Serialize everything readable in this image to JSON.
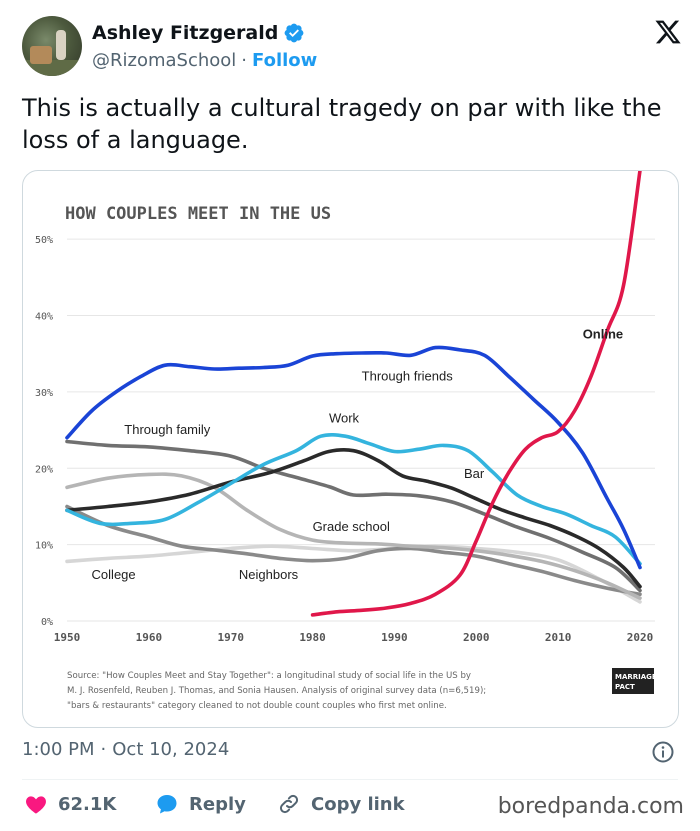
{
  "author": {
    "name": "Ashley Fitzgerald",
    "handle": "@RizomaSchool",
    "separator": "·",
    "follow_label": "Follow"
  },
  "tweet": {
    "text": "This is actually a cultural tragedy on par with like the loss of a language."
  },
  "meta": {
    "time": "1:00 PM",
    "separator": "·",
    "date": "Oct 10, 2024"
  },
  "actions": {
    "likes": "62.1K",
    "reply_label": "Reply",
    "copy_label": "Copy link"
  },
  "watermark": "boredpanda.com",
  "icons": {
    "verified": "verified-badge-icon",
    "x": "x-logo-icon",
    "info": "info-icon",
    "like": "heart-icon",
    "reply": "reply-bubble-icon",
    "copy": "link-icon"
  },
  "colors": {
    "like": "#f91880",
    "reply": "#1d9bf0",
    "verified": "#1d9bf0"
  },
  "chart_data": {
    "type": "line",
    "title": "HOW COUPLES MEET IN THE US",
    "xlim": [
      1950,
      2020
    ],
    "ylim": [
      0,
      55
    ],
    "xticks": [
      "1950",
      "1960",
      "1970",
      "1980",
      "1990",
      "2000",
      "2010",
      "2020"
    ],
    "xtick_values": [
      1950,
      1960,
      1970,
      1980,
      1990,
      2000,
      2010,
      2020
    ],
    "yticks": [
      "0%",
      "10%",
      "20%",
      "30%",
      "40%",
      "50%"
    ],
    "ytick_values": [
      0,
      10,
      20,
      30,
      40,
      50
    ],
    "grid": true,
    "source_lines": [
      "Source: \"How Couples Meet and Stay Together\": a longitudinal study of social life in the US by",
      "M. J. Rosenfeld, Reuben J. Thomas, and Sonia Hausen. Analysis of original survey data (n=6,519);",
      "\"bars & restaurants\" category cleaned to not double count couples who first met online."
    ],
    "logo_lines": [
      "MARRIAGE",
      "PACT"
    ],
    "series": [
      {
        "name": "Online",
        "color": "#e0174a",
        "x": [
          1980,
          1983,
          1986,
          1989,
          1992,
          1995,
          1998,
          2000,
          2002,
          2004,
          2006,
          2008,
          2010,
          2012,
          2014,
          2016,
          2018,
          2020
        ],
        "y": [
          0.8,
          1.2,
          1.4,
          1.7,
          2.3,
          3.5,
          6.0,
          10.5,
          15.5,
          19.5,
          22.5,
          24.0,
          24.8,
          27.5,
          32.0,
          38.0,
          44.0,
          59.0
        ]
      },
      {
        "name": "Through friends",
        "color": "#1a44d6",
        "x": [
          1950,
          1953,
          1956,
          1959,
          1962,
          1965,
          1968,
          1971,
          1974,
          1977,
          1980,
          1983,
          1986,
          1989,
          1992,
          1995,
          1998,
          2001,
          2004,
          2007,
          2010,
          2013,
          2016,
          2018,
          2020
        ],
        "y": [
          24,
          27.5,
          30,
          32,
          33.5,
          33.3,
          33,
          33.1,
          33.2,
          33.5,
          34.7,
          35,
          35.1,
          35.1,
          34.8,
          35.8,
          35.5,
          34.8,
          32,
          29,
          26,
          22,
          16,
          12,
          7
        ]
      },
      {
        "name": "Work",
        "color": "#34b4de",
        "x": [
          1950,
          1954,
          1958,
          1962,
          1966,
          1970,
          1974,
          1978,
          1981,
          1984,
          1987,
          1990,
          1993,
          1996,
          1999,
          2002,
          2005,
          2008,
          2011,
          2014,
          2017,
          2020
        ],
        "y": [
          14.5,
          12.8,
          12.8,
          13.3,
          15.5,
          18,
          20.5,
          22.3,
          24.2,
          24.2,
          23.2,
          22.2,
          22.5,
          23.0,
          22.3,
          19.5,
          16.5,
          15,
          14.0,
          12.5,
          11,
          7.5
        ]
      },
      {
        "name": "Bar",
        "color": "#2a2a2a",
        "x": [
          1950,
          1955,
          1960,
          1965,
          1970,
          1975,
          1979,
          1982,
          1985,
          1988,
          1991,
          1994,
          1997,
          2000,
          2003,
          2006,
          2009,
          2012,
          2015,
          2018,
          2020
        ],
        "y": [
          14.5,
          15,
          15.6,
          16.6,
          18.2,
          19.5,
          21,
          22.2,
          22.3,
          21,
          19,
          18.3,
          17.4,
          16,
          14.6,
          13.5,
          12.5,
          11.2,
          9.5,
          7,
          4.5
        ]
      },
      {
        "name": "Through family",
        "color": "#707070",
        "x": [
          1950,
          1955,
          1960,
          1965,
          1970,
          1974,
          1978,
          1982,
          1985,
          1989,
          1993,
          1997,
          2001,
          2005,
          2009,
          2013,
          2017,
          2020
        ],
        "y": [
          23.5,
          23,
          22.8,
          22.3,
          21.6,
          20,
          18.8,
          17.6,
          16.5,
          16.6,
          16.4,
          15.6,
          14,
          12.3,
          10.8,
          9,
          7,
          4
        ]
      },
      {
        "name": "Grade school",
        "color": "#b5b5b5",
        "x": [
          1950,
          1955,
          1960,
          1964,
          1968,
          1972,
          1976,
          1980,
          1984,
          1988,
          1992,
          1996,
          2000,
          2004,
          2008,
          2012,
          2016,
          2020
        ],
        "y": [
          17.5,
          18.7,
          19.2,
          19,
          17.5,
          14.5,
          12,
          10.6,
          10.2,
          10.1,
          9.8,
          9.6,
          9.2,
          8.6,
          7.8,
          6.6,
          5,
          3
        ]
      },
      {
        "name": "Neighbors",
        "color": "#8a8a8a",
        "x": [
          1950,
          1955,
          1960,
          1964,
          1968,
          1972,
          1976,
          1980,
          1984,
          1988,
          1992,
          1996,
          2000,
          2004,
          2008,
          2012,
          2016,
          2020
        ],
        "y": [
          15,
          12.5,
          11,
          9.8,
          9.3,
          8.8,
          8.2,
          7.9,
          8.2,
          9.2,
          9.5,
          9.0,
          8.5,
          7.5,
          6.5,
          5.3,
          4.3,
          3.5
        ]
      },
      {
        "name": "College",
        "color": "#d6d6d6",
        "x": [
          1950,
          1955,
          1960,
          1965,
          1970,
          1975,
          1980,
          1985,
          1990,
          1995,
          2000,
          2005,
          2010,
          2015,
          2020
        ],
        "y": [
          7.8,
          8.2,
          8.5,
          9.0,
          9.5,
          9.8,
          9.5,
          9.2,
          9.5,
          9.8,
          9.5,
          9.0,
          8.0,
          5.5,
          2.5
        ]
      }
    ],
    "series_label_anchors": [
      {
        "name": "Online",
        "x": 2013,
        "y": 37
      },
      {
        "name": "Through friends",
        "x": 1986,
        "y": 31.5
      },
      {
        "name": "Work",
        "x": 1982,
        "y": 26
      },
      {
        "name": "Through family",
        "x": 1957,
        "y": 24.5
      },
      {
        "name": "Bar",
        "x": 1998.5,
        "y": 18.7
      },
      {
        "name": "Grade school",
        "x": 1980,
        "y": 11.8
      },
      {
        "name": "College",
        "x": 1953,
        "y": 5.5
      },
      {
        "name": "Neighbors",
        "x": 1971,
        "y": 5.5
      }
    ]
  }
}
